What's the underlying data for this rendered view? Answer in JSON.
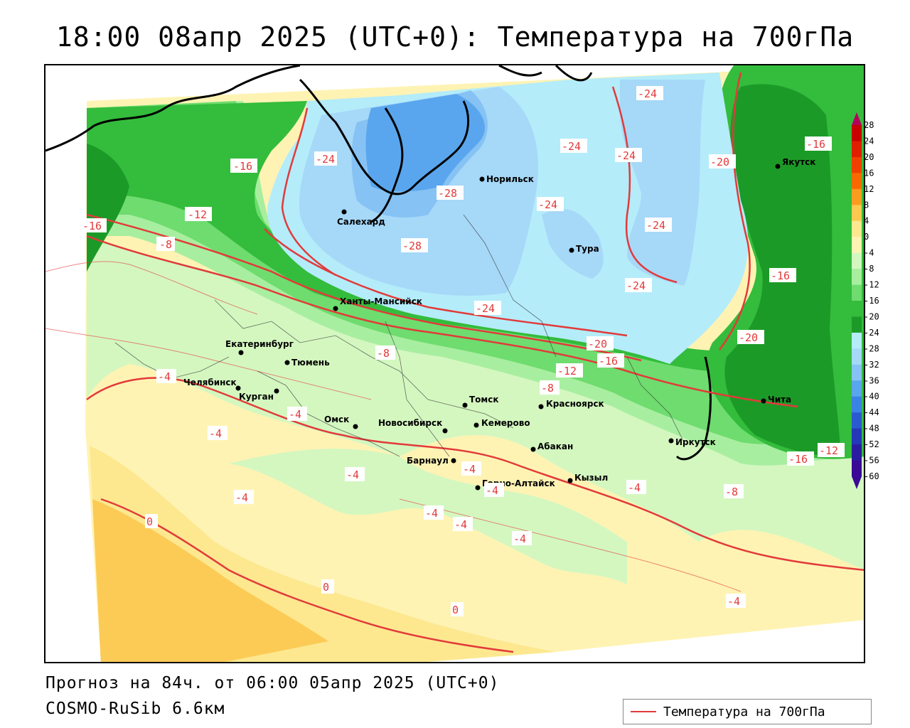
{
  "title": "18:00 08апр 2025 (UTC+0): Температура на 700гПа",
  "footer": {
    "forecast_line": "Прогноз на 84ч. от 06:00 05апр 2025 (UTC+0)",
    "model_line": "COSMO-RuSib 6.6км"
  },
  "legend": {
    "line_label": "Температура на 700гПа",
    "line_color": "#e23a3a",
    "scale_ticks": [
      "28",
      "24",
      "20",
      "16",
      "12",
      "8",
      "4",
      "0",
      "-4",
      "-8",
      "-12",
      "-16",
      "-20",
      "-24",
      "-28",
      "-32",
      "-36",
      "-40",
      "-44",
      "-48",
      "-52",
      "-56",
      "-60"
    ],
    "scale_colors": [
      "#b4005a",
      "#c80000",
      "#e01e00",
      "#f04000",
      "#f86a00",
      "#fa9c20",
      "#fcc850",
      "#fde890",
      "#fff3b4",
      "#d4f7c0",
      "#a8eea0",
      "#6edc6e",
      "#34bc3c",
      "#1c9a28",
      "#b4ecfa",
      "#a6d8f8",
      "#86c2f4",
      "#5aa6ee",
      "#3a82e4",
      "#2a5ad0",
      "#2438b8",
      "#2a1ca0",
      "#3a0a96"
    ]
  },
  "cities": [
    {
      "name": "Салехард"
    },
    {
      "name": "Норильск"
    },
    {
      "name": "Тура"
    },
    {
      "name": "Якутск"
    },
    {
      "name": "Ханты-Мансийск"
    },
    {
      "name": "Екатеринбург"
    },
    {
      "name": "Тюмень"
    },
    {
      "name": "Челябинск"
    },
    {
      "name": "Курган"
    },
    {
      "name": "Омск"
    },
    {
      "name": "Новосибирск"
    },
    {
      "name": "Томск"
    },
    {
      "name": "Кемерово"
    },
    {
      "name": "Красноярск"
    },
    {
      "name": "Абакан"
    },
    {
      "name": "Барнаул"
    },
    {
      "name": "Горно-Алтайск"
    },
    {
      "name": "Кызыл"
    },
    {
      "name": "Иркутск"
    },
    {
      "name": "Чита"
    }
  ],
  "isolines": [
    "-24",
    "-16",
    "-12",
    "-16",
    "-8",
    "-28",
    "-28",
    "-24",
    "-24",
    "-24",
    "-20",
    "-16",
    "-24",
    "-24",
    "-24",
    "-24",
    "-16",
    "-20",
    "-20",
    "-16",
    "-8",
    "-12",
    "-8",
    "-16",
    "-12",
    "-4",
    "-4",
    "-4",
    "-4",
    "-4",
    "-4",
    "-4",
    "-4",
    "-4",
    "-4",
    "-4",
    "-8",
    "0",
    "0",
    "0",
    "-4"
  ]
}
